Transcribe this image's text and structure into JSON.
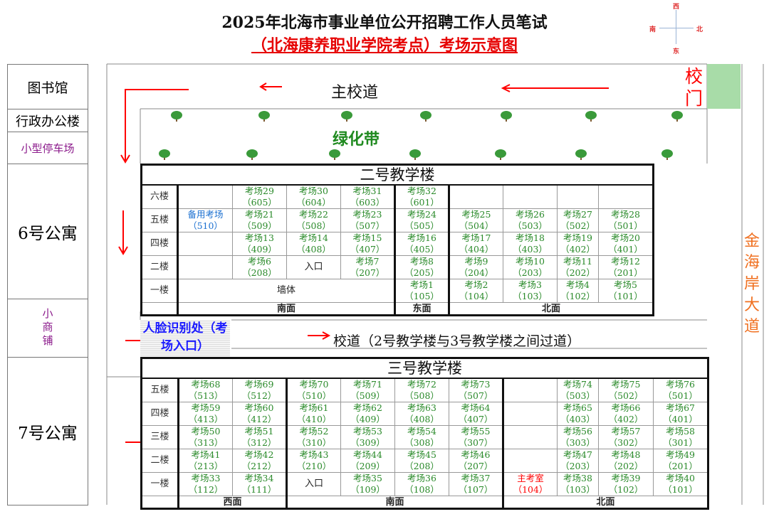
{
  "header": {
    "title": "2025年北海市事业单位公开招聘工作人员笔试",
    "subtitle": "（北海康养职业学院考点）考场示意图"
  },
  "compass": {
    "north": "北",
    "south": "南",
    "east": "东",
    "west": "西"
  },
  "sidebar": [
    {
      "label": "图书馆"
    },
    {
      "label": "行政办公楼"
    },
    {
      "label": "小型停车场"
    },
    {
      "label": "6号公寓"
    },
    {
      "label": "小商铺"
    },
    {
      "label": "7号公寓"
    }
  ],
  "map": {
    "main_road": "主校道",
    "gate": "校门",
    "green_belt": "绿化带",
    "avenue": "金海岸大道",
    "face_check": "人脸识别处（考场入口）",
    "inner_road": "校道（2号教学楼与3号教学楼之间过道）"
  },
  "colors": {
    "exam": "#2a8a2a",
    "arrow": "#ff0000",
    "reserve": "#1a6fd0",
    "gate_green": "#a8dca8"
  },
  "building2": {
    "title": "二号教学楼",
    "rows": [
      {
        "floor": "六楼",
        "cells": [
          {},
          {
            "n": "考场29",
            "r": "（605）"
          },
          {
            "n": "考场30",
            "r": "（604）"
          },
          {
            "n": "考场31",
            "r": "（603）"
          },
          {
            "n": "考场32",
            "r": "（601）"
          },
          {},
          {},
          {},
          {}
        ]
      },
      {
        "floor": "五楼",
        "cells": [
          {
            "n": "备用考场",
            "r": "（510）",
            "style": "blue"
          },
          {
            "n": "考场21",
            "r": "（509）"
          },
          {
            "n": "考场22",
            "r": "（508）"
          },
          {
            "n": "考场23",
            "r": "（507）"
          },
          {
            "n": "考场24",
            "r": "（505）"
          },
          {
            "n": "考场25",
            "r": "（504）"
          },
          {
            "n": "考场26",
            "r": "（503）"
          },
          {
            "n": "考场27",
            "r": "（502）"
          },
          {
            "n": "考场28",
            "r": "（501）"
          }
        ]
      },
      {
        "floor": "四楼",
        "cells": [
          {},
          {
            "n": "考场13",
            "r": "（409）"
          },
          {
            "n": "考场14",
            "r": "（408）"
          },
          {
            "n": "考场15",
            "r": "（407）"
          },
          {
            "n": "考场16",
            "r": "（405）"
          },
          {
            "n": "考场17",
            "r": "（404）"
          },
          {
            "n": "考场18",
            "r": "（403）"
          },
          {
            "n": "考场19",
            "r": "（402）"
          },
          {
            "n": "考场20",
            "r": "（401）"
          }
        ]
      },
      {
        "floor": "二楼",
        "cells": [
          {},
          {
            "n": "考场6",
            "r": "（208）"
          },
          {
            "t": "入口"
          },
          {
            "n": "考场7",
            "r": "（207）"
          },
          {
            "n": "考场8",
            "r": "（205）"
          },
          {
            "n": "考场9",
            "r": "（204）"
          },
          {
            "n": "考场10",
            "r": "（203）"
          },
          {
            "n": "考场11",
            "r": "（202）"
          },
          {
            "n": "考场12",
            "r": "（201）"
          }
        ]
      },
      {
        "floor": "一楼",
        "cells": [
          {
            "t": "墙体",
            "span": 4
          },
          {
            "n": "考场1",
            "r": "（105）"
          },
          {
            "n": "考场2",
            "r": "（104）"
          },
          {
            "n": "考场3",
            "r": "（103）"
          },
          {
            "n": "考场4",
            "r": "（102）"
          },
          {
            "n": "考场5",
            "r": "（101）"
          }
        ]
      }
    ],
    "faces": [
      {
        "label": "南面",
        "span": 4
      },
      {
        "label": "东面",
        "span": 1
      },
      {
        "label": "北面",
        "span": 4
      }
    ]
  },
  "building3": {
    "title": "三号教学楼",
    "rows": [
      {
        "floor": "五楼",
        "cells": [
          {
            "n": "考场68",
            "r": "（513）"
          },
          {
            "n": "考场69",
            "r": "（512）"
          },
          {
            "n": "考场70",
            "r": "（510）"
          },
          {
            "n": "考场71",
            "r": "（509）"
          },
          {
            "n": "考场72",
            "r": "（508）"
          },
          {
            "n": "考场73",
            "r": "（507）"
          },
          {},
          {
            "n": "考场74",
            "r": "（503）"
          },
          {
            "n": "考场75",
            "r": "（502）"
          },
          {
            "n": "考场76",
            "r": "（501）"
          }
        ]
      },
      {
        "floor": "四楼",
        "cells": [
          {
            "n": "考场59",
            "r": "（413）"
          },
          {
            "n": "考场60",
            "r": "（412）"
          },
          {
            "n": "考场61",
            "r": "（410）"
          },
          {
            "n": "考场62",
            "r": "（409）"
          },
          {
            "n": "考场63",
            "r": "（408）"
          },
          {
            "n": "考场64",
            "r": "（407）"
          },
          {},
          {
            "n": "考场65",
            "r": "（403）"
          },
          {
            "n": "考场66",
            "r": "（402）"
          },
          {
            "n": "考场67",
            "r": "（401）"
          }
        ]
      },
      {
        "floor": "三楼",
        "cells": [
          {
            "n": "考场50",
            "r": "（313）"
          },
          {
            "n": "考场51",
            "r": "（312）"
          },
          {
            "n": "考场52",
            "r": "（310）"
          },
          {
            "n": "考场53",
            "r": "（309）"
          },
          {
            "n": "考场54",
            "r": "（308）"
          },
          {
            "n": "考场55",
            "r": "（307）"
          },
          {},
          {
            "n": "考场56",
            "r": "（303）"
          },
          {
            "n": "考场57",
            "r": "（302）"
          },
          {
            "n": "考场58",
            "r": "（301）"
          }
        ]
      },
      {
        "floor": "二楼",
        "cells": [
          {
            "n": "考场41",
            "r": "（213）"
          },
          {
            "n": "考场42",
            "r": "（212）"
          },
          {
            "n": "考场43",
            "r": "（210）"
          },
          {
            "n": "考场44",
            "r": "（209）"
          },
          {
            "n": "考场45",
            "r": "（208）"
          },
          {
            "n": "考场46",
            "r": "（207）"
          },
          {},
          {
            "n": "考场47",
            "r": "（203）"
          },
          {
            "n": "考场48",
            "r": "（202）"
          },
          {
            "n": "考场49",
            "r": "（201）"
          }
        ]
      },
      {
        "floor": "一楼",
        "cells": [
          {
            "n": "考场33",
            "r": "（112）"
          },
          {
            "n": "考场34",
            "r": "（111）"
          },
          {
            "t": "入口"
          },
          {
            "n": "考场35",
            "r": "（109）"
          },
          {
            "n": "考场36",
            "r": "（108）"
          },
          {
            "n": "考场37",
            "r": "（107）"
          },
          {
            "n": "主考室",
            "r": "（104）",
            "style": "red"
          },
          {
            "n": "考场38",
            "r": "（103）"
          },
          {
            "n": "考场39",
            "r": "（102）"
          },
          {
            "n": "考场40",
            "r": "（101）"
          }
        ]
      }
    ],
    "faces": [
      {
        "label": "西面",
        "span": 2
      },
      {
        "label": "南面",
        "span": 4
      },
      {
        "label": "北面",
        "span": 4
      }
    ]
  }
}
